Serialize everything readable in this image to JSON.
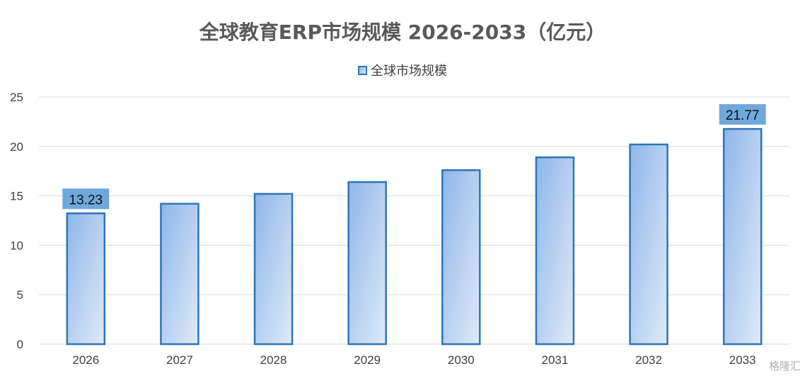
{
  "chart_data": {
    "type": "bar",
    "title": "全球教育ERP市场规模 2026-2033（亿元）",
    "categories": [
      "2026",
      "2027",
      "2028",
      "2029",
      "2030",
      "2031",
      "2032",
      "2033"
    ],
    "series": [
      {
        "name": "全球市场规模",
        "values": [
          13.23,
          14.2,
          15.2,
          16.4,
          17.6,
          18.9,
          20.2,
          21.77
        ]
      }
    ],
    "data_labels": [
      {
        "category": "2026",
        "text": "13.23"
      },
      {
        "category": "2033",
        "text": "21.77"
      }
    ],
    "ylim": [
      0,
      25
    ],
    "yticks": [
      "0",
      "5",
      "10",
      "15",
      "20",
      "25"
    ],
    "grid": true,
    "legend_position": "top-center",
    "colors": {
      "bar_border": "#2e75b6",
      "bar_fill_start": "#8fb6ea",
      "bar_fill_end": "#dfeaf8",
      "label_box": "#6fa8dc",
      "grid": "#d9d9d9"
    }
  },
  "watermark": "格隆汇"
}
